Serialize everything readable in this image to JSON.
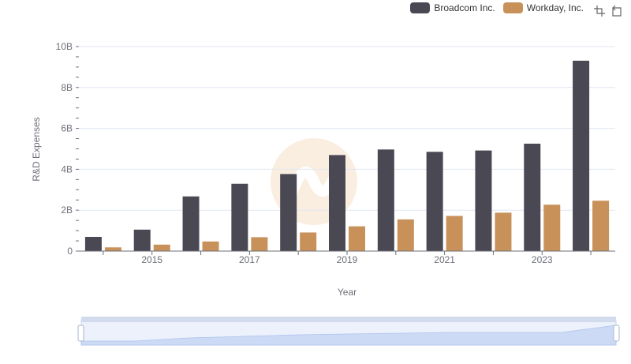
{
  "chart_data": {
    "type": "bar",
    "xlabel": "Year",
    "ylabel": "R&D Expenses",
    "ylim": [
      0,
      10000000000
    ],
    "yticks": [
      "0",
      "2B",
      "4B",
      "6B",
      "8B",
      "10B"
    ],
    "categories": [
      "2014",
      "2015",
      "2016",
      "2017",
      "2018",
      "2019",
      "2020",
      "2021",
      "2022",
      "2023",
      "2024"
    ],
    "xtick_labels": [
      "2015",
      "2017",
      "2019",
      "2021",
      "2023"
    ],
    "series": [
      {
        "name": "Broadcom Inc.",
        "color": "#4a4953",
        "values": [
          695000000,
          1049000000,
          2674000000,
          3292000000,
          3768000000,
          4696000000,
          4968000000,
          4854000000,
          4919000000,
          5253000000,
          9310000000
        ]
      },
      {
        "name": "Workday, Inc.",
        "color": "#c8915a",
        "values": [
          182000000,
          316000000,
          470000000,
          680000000,
          910000000,
          1211000000,
          1549000000,
          1721000000,
          1879000000,
          2270000000,
          2464000000
        ]
      }
    ]
  },
  "legend": {
    "items": [
      {
        "label": "Broadcom Inc.",
        "color": "#4a4953"
      },
      {
        "label": "Workday, Inc.",
        "color": "#c8915a"
      }
    ]
  },
  "toolbox": {
    "icons": [
      "zoom-icon",
      "restore-icon"
    ]
  },
  "datazoom": {
    "start_percent": 0,
    "end_percent": 100
  }
}
